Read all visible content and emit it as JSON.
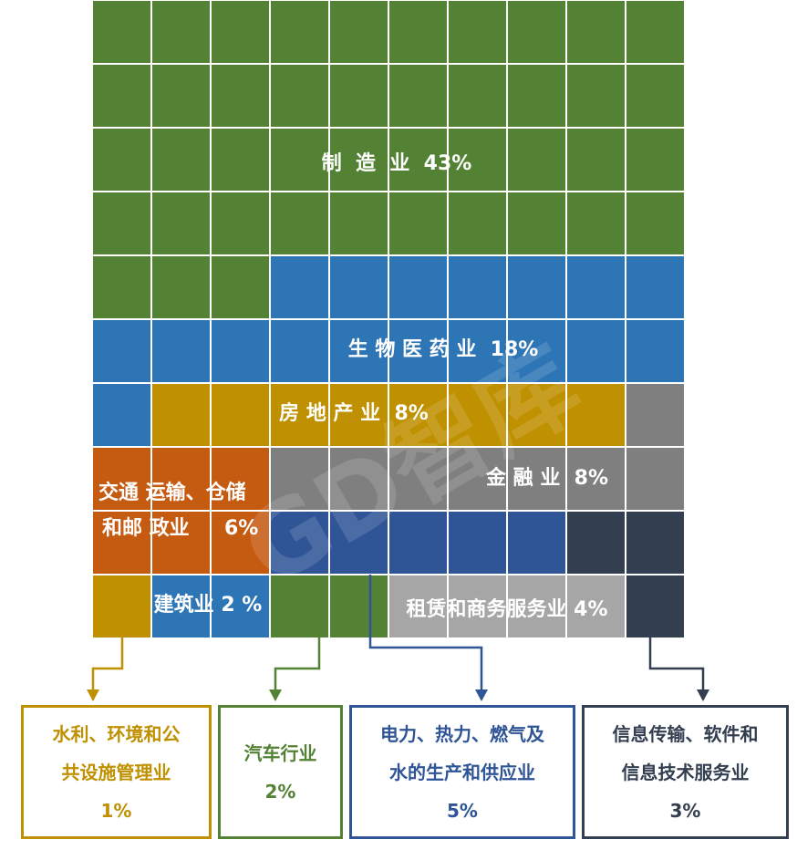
{
  "chart_data": {
    "type": "waffle",
    "total_cells": 100,
    "categories": [
      {
        "name": "制造业",
        "label": "制  造  业",
        "percent_label": "43%",
        "value": 43,
        "color": "#548235"
      },
      {
        "name": "生物医药业",
        "label": "生 物 医 药 业",
        "percent_label": "18%",
        "value": 18,
        "color": "#2e75b6"
      },
      {
        "name": "房地产业",
        "label": "房 地 产 业",
        "percent_label": "8%",
        "value": 8,
        "color": "#bf9000"
      },
      {
        "name": "金融业",
        "label": "金 融 业",
        "percent_label": "8%",
        "value": 8,
        "color": "#7f7f7f"
      },
      {
        "name": "交通运输、仓储和邮政业",
        "label_lines": [
          "交通 运输、仓储",
          "和邮 政业     6%"
        ],
        "value": 6,
        "color": "#c55a11"
      },
      {
        "name": "电力、热力、燃气及水的生产和供应业",
        "value": 5,
        "color": "#2f5597"
      },
      {
        "name": "信息传输、软件和信息技术服务业",
        "value": 3,
        "color": "#333f50"
      },
      {
        "name": "建筑业",
        "label": "建筑业 2 %",
        "value": 2,
        "color": "#2e75b6"
      },
      {
        "name": "汽车行业",
        "value": 2,
        "color": "#548235"
      },
      {
        "name": "租赁和商务服务业",
        "label": "租赁和商务服务业 4%",
        "value": 4,
        "color": "#a6a6a6"
      },
      {
        "name": "水利、环境和公共设施管理业",
        "value": 1,
        "color": "#bf9000"
      }
    ],
    "watermark": "GD智库",
    "callouts": [
      {
        "lines": [
          "水利、环境和公",
          "共设施管理业",
          "1%"
        ],
        "color": "#bf9000"
      },
      {
        "lines": [
          "汽车行业",
          "2%"
        ],
        "color": "#548235"
      },
      {
        "lines": [
          "电力、热力、燃气及",
          "水的生产和供应业",
          "5%"
        ],
        "color": "#2f5597"
      },
      {
        "lines": [
          "信息传输、软件和",
          "信息技术服务业",
          "3%"
        ],
        "color": "#333f50"
      }
    ]
  }
}
